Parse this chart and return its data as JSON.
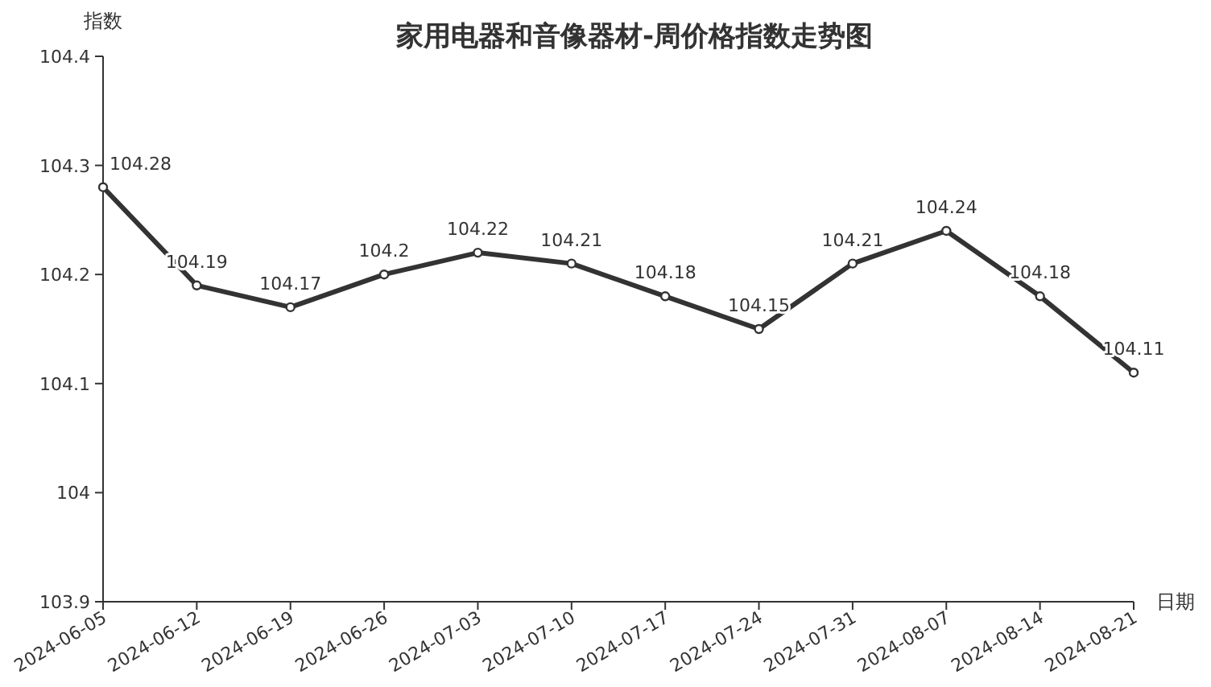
{
  "chart_data": {
    "type": "line",
    "title": "家用电器和音像器材-周价格指数走势图",
    "xlabel": "日期",
    "ylabel": "指数",
    "categories": [
      "2024-06-05",
      "2024-06-12",
      "2024-06-19",
      "2024-06-26",
      "2024-07-03",
      "2024-07-10",
      "2024-07-17",
      "2024-07-24",
      "2024-07-31",
      "2024-08-07",
      "2024-08-14",
      "2024-08-21"
    ],
    "series": [
      {
        "color": "#333333",
        "values": [
          104.28,
          104.19,
          104.17,
          104.2,
          104.22,
          104.21,
          104.18,
          104.15,
          104.21,
          104.24,
          104.18,
          104.11
        ]
      }
    ],
    "ylim": [
      103.9,
      104.4
    ],
    "yticks": [
      103.9,
      104,
      104.1,
      104.2,
      104.3,
      104.4
    ],
    "data_labels": true,
    "marker": "circle",
    "grid": false
  }
}
